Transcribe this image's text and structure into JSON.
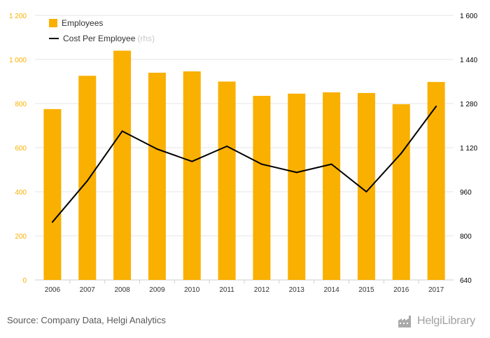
{
  "chart_data": {
    "type": "bar",
    "categories": [
      "2006",
      "2007",
      "2008",
      "2009",
      "2010",
      "2011",
      "2012",
      "2013",
      "2014",
      "2015",
      "2016",
      "2017"
    ],
    "series": [
      {
        "name": "Employees",
        "type": "bar",
        "axis": "left",
        "color": "#f9b000",
        "values": [
          775,
          926,
          1040,
          940,
          946,
          900,
          835,
          845,
          851,
          848,
          797,
          898
        ]
      },
      {
        "name": "Cost Per Employee",
        "type": "line",
        "axis": "right",
        "color": "#000000",
        "values": [
          850,
          1000,
          1180,
          1115,
          1070,
          1125,
          1060,
          1030,
          1060,
          960,
          1100,
          1270
        ]
      }
    ],
    "y_left": {
      "min": 0,
      "max": 1200,
      "ticks": [
        0,
        200,
        400,
        600,
        800,
        1000,
        1200
      ],
      "tick_labels": [
        "0",
        "200",
        "400",
        "600",
        "800",
        "1 000",
        "1 200"
      ],
      "color": "#f9b000"
    },
    "y_right": {
      "min": 640,
      "max": 1600,
      "ticks": [
        640,
        800,
        960,
        1120,
        1280,
        1440,
        1600
      ],
      "tick_labels": [
        "640",
        "800",
        "960",
        "1 120",
        "1 280",
        "1 440",
        "1 600"
      ],
      "color": "#000000"
    },
    "legend_position": "top-left",
    "grid": true
  },
  "legend": {
    "employees_label": "Employees",
    "cost_label": "Cost Per Employee",
    "cost_suffix": "(rhs)"
  },
  "footer": {
    "source": "Source: Company Data, Helgi Analytics",
    "brand": "HelgiLibrary",
    "brand_icon": "factory-icon"
  }
}
